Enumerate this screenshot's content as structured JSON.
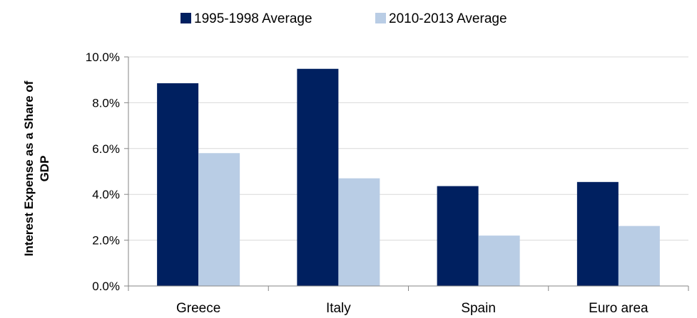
{
  "chart_data": {
    "type": "bar",
    "title": "",
    "xlabel": "",
    "ylabel": "Interest Expense as a Share of GDP",
    "ylabel_lines": [
      "Interest Expense as a Share of",
      "GDP"
    ],
    "categories": [
      "Greece",
      "Italy",
      "Spain",
      "Euro area"
    ],
    "series": [
      {
        "name": "1995-1998 Average",
        "values": [
          8.85,
          9.48,
          4.36,
          4.54
        ],
        "color": "#002060"
      },
      {
        "name": "2010-2013 Average",
        "values": [
          5.8,
          4.7,
          2.2,
          2.62
        ],
        "color": "#B9CDE5"
      }
    ],
    "ylim": [
      0,
      10
    ],
    "yticks": [
      "0.0%",
      "2.0%",
      "4.0%",
      "6.0%",
      "8.0%",
      "10.0%"
    ],
    "grid": true,
    "legend_position": "top"
  }
}
